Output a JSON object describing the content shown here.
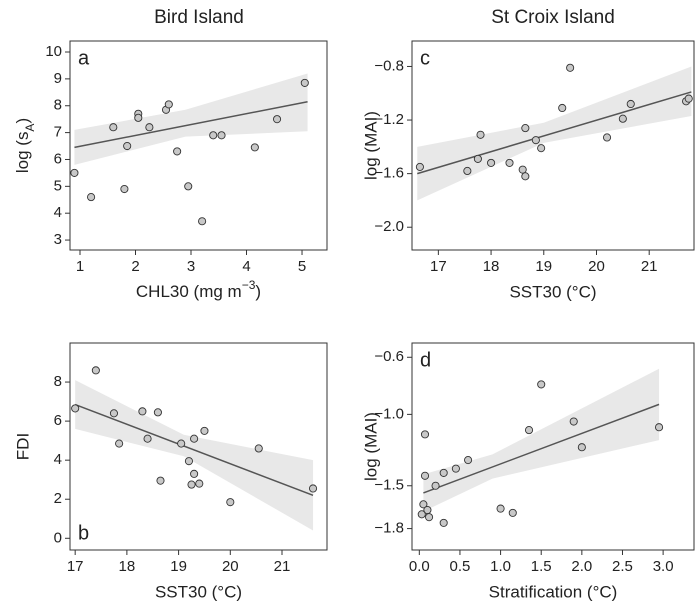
{
  "column_titles": [
    "Bird Island",
    "St Croix Island"
  ],
  "chart_data": [
    {
      "type": "scatter",
      "panel_label": "a",
      "xlabel": [
        {
          "text": "CHL30 (mg m"
        },
        {
          "text": "−3",
          "script": "sup"
        },
        {
          "text": ")"
        }
      ],
      "ylabel": [
        {
          "text": "log (s"
        },
        {
          "text": "A",
          "script": "sub"
        },
        {
          "text": ")"
        }
      ],
      "xlim": [
        0.82,
        5.45
      ],
      "ylim": [
        2.63,
        10.41
      ],
      "xticks": [
        1,
        2,
        3,
        4,
        5
      ],
      "yticks": [
        3,
        4,
        5,
        6,
        7,
        8,
        9,
        10
      ],
      "x": [
        0.9,
        1.2,
        1.6,
        1.8,
        1.85,
        2.05,
        2.05,
        2.25,
        2.55,
        2.6,
        2.75,
        2.95,
        3.2,
        3.4,
        3.55,
        4.15,
        4.55,
        5.05
      ],
      "y": [
        5.5,
        4.6,
        7.2,
        4.9,
        6.5,
        7.7,
        7.55,
        7.2,
        7.85,
        8.05,
        6.3,
        5.0,
        3.7,
        6.9,
        6.9,
        6.45,
        7.5,
        8.85
      ],
      "fit_x": [
        0.9,
        5.1
      ],
      "fit_y": [
        6.45,
        8.15
      ],
      "ci_x": [
        0.9,
        2.9,
        5.1
      ],
      "ci_lower": [
        5.8,
        6.85,
        7.05
      ],
      "ci_upper": [
        7.1,
        7.85,
        9.2
      ],
      "color": "#c8c8c8",
      "line_color": "#555555",
      "band_color": "#e8e8e8"
    },
    {
      "type": "scatter",
      "panel_label": "c",
      "xlabel": "SST30 (°C)",
      "ylabel": "log (MAI)",
      "xlim": [
        16.5,
        21.85
      ],
      "ylim": [
        -2.17,
        -0.61
      ],
      "xticks": [
        17,
        18,
        19,
        20,
        21
      ],
      "yticks": [
        {
          "value": -2.0,
          "label": "−2.0"
        },
        {
          "value": -1.6,
          "label": "−1.6"
        },
        {
          "value": -1.2,
          "label": "−1.2"
        },
        {
          "value": -0.8,
          "label": "−0.8"
        }
      ],
      "x": [
        16.65,
        17.55,
        17.75,
        17.8,
        18.0,
        18.35,
        18.6,
        18.65,
        18.65,
        18.85,
        18.95,
        19.35,
        19.5,
        20.2,
        20.5,
        20.65,
        21.7,
        21.75
      ],
      "y": [
        -1.55,
        -1.58,
        -1.49,
        -1.31,
        -1.52,
        -1.52,
        -1.57,
        -1.62,
        -1.26,
        -1.35,
        -1.41,
        -1.11,
        -0.81,
        -1.33,
        -1.19,
        -1.08,
        -1.06,
        -1.04
      ],
      "fit_x": [
        16.6,
        21.8
      ],
      "fit_y": [
        -1.6,
        -0.99
      ],
      "ci_x": [
        16.6,
        19.0,
        21.8
      ],
      "ci_lower": [
        -1.8,
        -1.37,
        -1.17
      ],
      "ci_upper": [
        -1.4,
        -1.22,
        -0.8
      ],
      "color": "#c8c8c8",
      "line_color": "#555555",
      "band_color": "#e8e8e8"
    },
    {
      "type": "scatter",
      "panel_label": "b",
      "xlabel": "SST30 (°C)",
      "ylabel": "FDI",
      "xlim": [
        16.9,
        21.87
      ],
      "ylim": [
        -0.6,
        10.0
      ],
      "xticks": [
        17,
        18,
        19,
        20,
        21
      ],
      "yticks": [
        0,
        2,
        4,
        6,
        8
      ],
      "x": [
        17.0,
        17.4,
        17.75,
        17.85,
        18.3,
        18.4,
        18.6,
        18.65,
        19.05,
        19.2,
        19.25,
        19.3,
        19.3,
        19.4,
        19.5,
        20.0,
        20.55,
        21.6
      ],
      "y": [
        6.65,
        8.6,
        6.4,
        4.85,
        6.5,
        5.1,
        6.45,
        2.95,
        4.85,
        3.95,
        2.75,
        5.1,
        3.3,
        2.8,
        5.5,
        1.85,
        4.6,
        2.55
      ],
      "fit_x": [
        17.0,
        21.6
      ],
      "fit_y": [
        6.85,
        2.2
      ],
      "ci_x": [
        17.0,
        19.1,
        21.6
      ],
      "ci_lower": [
        5.6,
        4.2,
        0.4
      ],
      "ci_upper": [
        8.1,
        5.3,
        4.0
      ],
      "color": "#c8c8c8",
      "line_color": "#555555",
      "band_color": "#e8e8e8"
    },
    {
      "type": "scatter",
      "panel_label": "d",
      "xlabel": "Stratification (°C)",
      "ylabel": "log (MAI)",
      "xlim": [
        -0.09,
        3.38
      ],
      "ylim": [
        -1.95,
        -0.5
      ],
      "xticks": [
        {
          "value": 0,
          "label": "0.0"
        },
        0.5,
        {
          "value": 1,
          "label": "1.0"
        },
        1.5,
        {
          "value": 2,
          "label": "2.0"
        },
        2.5,
        {
          "value": 3,
          "label": "3.0"
        }
      ],
      "yticks": [
        {
          "value": -1.8,
          "label": "−1.8"
        },
        {
          "value": -1.5,
          "label": "−1.5"
        },
        {
          "value": -1.0,
          "label": "−1.0"
        },
        {
          "value": -0.6,
          "label": "−0.6"
        }
      ],
      "x": [
        0.03,
        0.05,
        0.07,
        0.07,
        0.1,
        0.12,
        0.2,
        0.3,
        0.3,
        0.45,
        0.6,
        1.0,
        1.15,
        1.35,
        1.5,
        1.9,
        2.0,
        2.95
      ],
      "y": [
        -1.7,
        -1.63,
        -1.14,
        -1.43,
        -1.67,
        -1.72,
        -1.5,
        -1.41,
        -1.76,
        -1.38,
        -1.32,
        -1.66,
        -1.69,
        -1.11,
        -0.79,
        -1.05,
        -1.23,
        -1.09
      ],
      "fit_x": [
        0.05,
        2.95
      ],
      "fit_y": [
        -1.55,
        -0.93
      ],
      "ci_x": [
        0.05,
        0.9,
        2.95
      ],
      "ci_lower": [
        -1.68,
        -1.45,
        -1.18
      ],
      "ci_upper": [
        -1.42,
        -1.28,
        -0.68
      ],
      "color": "#c8c8c8",
      "line_color": "#555555",
      "band_color": "#e8e8e8"
    }
  ]
}
